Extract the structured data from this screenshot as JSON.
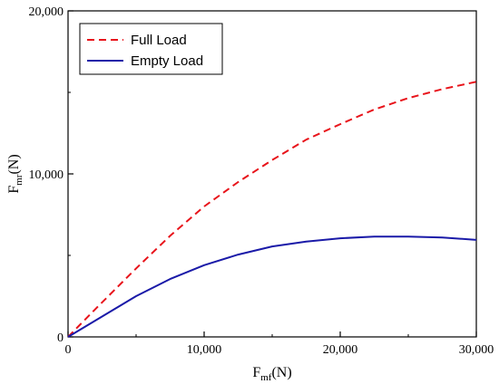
{
  "chart_data": {
    "type": "line",
    "xlabel": {
      "main": "F",
      "sub": "mf",
      "unit": "(N)"
    },
    "ylabel": {
      "main": "F",
      "sub": "mr",
      "unit": "(N)"
    },
    "xlim": [
      0,
      30000
    ],
    "ylim": [
      0,
      20000
    ],
    "x_ticks": [
      0,
      10000,
      20000,
      30000
    ],
    "x_tick_labels": [
      "0",
      "10,000",
      "20,000",
      "30,000"
    ],
    "y_ticks": [
      0,
      10000,
      20000
    ],
    "y_tick_labels": [
      "0",
      "10,000",
      "20,000"
    ],
    "grid": false,
    "legend_position": "top-left",
    "series": [
      {
        "name": "Full Load",
        "color": "#e8141b",
        "dash": "dashed",
        "x": [
          0,
          2000,
          5000,
          7500,
          10000,
          12500,
          15000,
          17500,
          20000,
          22500,
          25000,
          27500,
          30000
        ],
        "y": [
          0,
          1700,
          4200,
          6200,
          8000,
          9500,
          10850,
          12100,
          13050,
          13950,
          14650,
          15200,
          15650
        ]
      },
      {
        "name": "Empty Load",
        "color": "#1a1aa8",
        "dash": "solid",
        "x": [
          0,
          2500,
          5000,
          7500,
          10000,
          12500,
          15000,
          17500,
          20000,
          22500,
          25000,
          27500,
          30000
        ],
        "y": [
          0,
          1250,
          2500,
          3550,
          4400,
          5050,
          5550,
          5850,
          6050,
          6150,
          6150,
          6100,
          5950
        ]
      }
    ]
  }
}
